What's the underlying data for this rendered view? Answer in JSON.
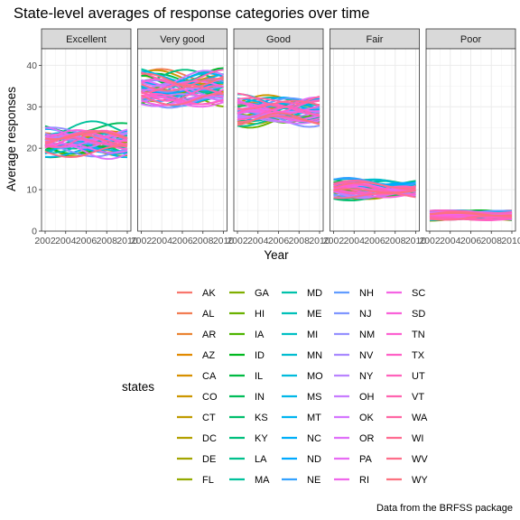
{
  "chart_data": {
    "type": "line",
    "title": "State-level averages of response categories over time",
    "xlabel": "Year",
    "ylabel": "Average responses",
    "caption": "Data from the BRFSS package",
    "xlim": [
      2002,
      2010
    ],
    "ylim": [
      0,
      44
    ],
    "x_ticks": [
      2002,
      2004,
      2006,
      2008,
      2010
    ],
    "y_ticks": [
      0,
      10,
      20,
      30,
      40
    ],
    "grid": true,
    "legend_title": "states",
    "legend_position": "bottom",
    "panels": [
      {
        "label": "Excellent",
        "center": 22,
        "spread": 3.2
      },
      {
        "label": "Very good",
        "center": 34.5,
        "spread": 3.4
      },
      {
        "label": "Good",
        "center": 29,
        "spread": 2.6
      },
      {
        "label": "Fair",
        "center": 10,
        "spread": 2.0
      },
      {
        "label": "Poor",
        "center": 3.8,
        "spread": 0.9
      }
    ],
    "series": [
      {
        "name": "AK",
        "color": "#F8766D"
      },
      {
        "name": "AL",
        "color": "#F27D53"
      },
      {
        "name": "AR",
        "color": "#EA8332"
      },
      {
        "name": "AZ",
        "color": "#E18A00"
      },
      {
        "name": "CA",
        "color": "#D79000"
      },
      {
        "name": "CO",
        "color": "#CC9600"
      },
      {
        "name": "CT",
        "color": "#C09B00"
      },
      {
        "name": "DC",
        "color": "#B3A000"
      },
      {
        "name": "DE",
        "color": "#A3A500"
      },
      {
        "name": "FL",
        "color": "#93AA00"
      },
      {
        "name": "GA",
        "color": "#80AE00"
      },
      {
        "name": "HI",
        "color": "#6AB100"
      },
      {
        "name": "IA",
        "color": "#4DB400"
      },
      {
        "name": "ID",
        "color": "#00B81F"
      },
      {
        "name": "IL",
        "color": "#00BA42"
      },
      {
        "name": "IN",
        "color": "#00BC59"
      },
      {
        "name": "KS",
        "color": "#00BE6C"
      },
      {
        "name": "KY",
        "color": "#00BF7D"
      },
      {
        "name": "LA",
        "color": "#00C08D"
      },
      {
        "name": "MA",
        "color": "#00C19C"
      },
      {
        "name": "MD",
        "color": "#00C1AA"
      },
      {
        "name": "ME",
        "color": "#00C0B8"
      },
      {
        "name": "MI",
        "color": "#00BFC4"
      },
      {
        "name": "MN",
        "color": "#00BDD0"
      },
      {
        "name": "MO",
        "color": "#00BBDC"
      },
      {
        "name": "MS",
        "color": "#00B7E7"
      },
      {
        "name": "MT",
        "color": "#00B4F0"
      },
      {
        "name": "NC",
        "color": "#00AFF8"
      },
      {
        "name": "ND",
        "color": "#00A9FF"
      },
      {
        "name": "NE",
        "color": "#35A2FF"
      },
      {
        "name": "NH",
        "color": "#619CFF"
      },
      {
        "name": "NJ",
        "color": "#7F96FF"
      },
      {
        "name": "NM",
        "color": "#9590FF"
      },
      {
        "name": "NV",
        "color": "#A889FF"
      },
      {
        "name": "NY",
        "color": "#B983FF"
      },
      {
        "name": "OH",
        "color": "#C77CFF"
      },
      {
        "name": "OK",
        "color": "#D476FF"
      },
      {
        "name": "OR",
        "color": "#DF70F9"
      },
      {
        "name": "PA",
        "color": "#E76BF3"
      },
      {
        "name": "RI",
        "color": "#EF67EB"
      },
      {
        "name": "SC",
        "color": "#F564E3"
      },
      {
        "name": "SD",
        "color": "#FA62D9"
      },
      {
        "name": "TN",
        "color": "#FD61D1"
      },
      {
        "name": "TX",
        "color": "#FF61C6"
      },
      {
        "name": "UT",
        "color": "#FF62BC"
      },
      {
        "name": "VT",
        "color": "#FF64B0"
      },
      {
        "name": "WA",
        "color": "#FF67A4"
      },
      {
        "name": "WI",
        "color": "#FF6C91"
      },
      {
        "name": "WV",
        "color": "#FE6E8A"
      },
      {
        "name": "WY",
        "color": "#FC717F"
      }
    ]
  }
}
